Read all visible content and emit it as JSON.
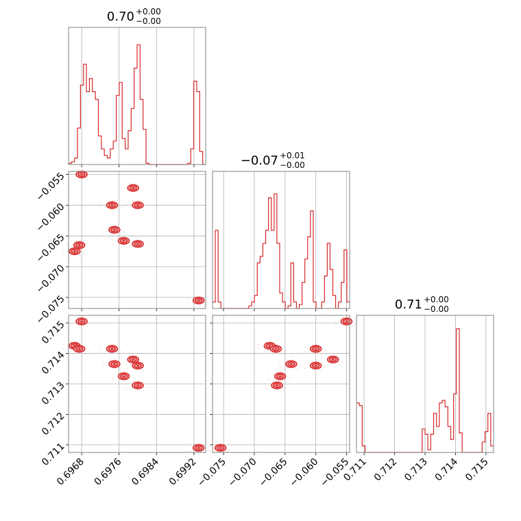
{
  "colors": {
    "series": "#d62728",
    "frame": "#808080",
    "grid": "#b0b0b0"
  },
  "chart_data": {
    "type": "corner",
    "params": [
      {
        "title": {
          "value": "0.70",
          "plus": "+0.00",
          "minus": "−0.00"
        },
        "range": [
          0.69652,
          0.69945
        ],
        "ticks": [
          {
            "value": 0.6968,
            "label": "0.6968"
          },
          {
            "value": 0.6976,
            "label": "0.6976"
          },
          {
            "value": 0.6984,
            "label": "0.6984"
          },
          {
            "value": 0.6992,
            "label": "0.6992"
          }
        ],
        "hist": [
          0.01,
          0.02,
          0.05,
          0.28,
          0.61,
          0.77,
          0.56,
          0.66,
          0.56,
          0.5,
          0.22,
          0.12,
          0.07,
          0.05,
          0.12,
          0.18,
          0.53,
          0.63,
          0.2,
          0.12,
          0.26,
          0.43,
          0.74,
          0.92,
          0.5,
          0.27,
          0.01,
          0.0,
          0.0,
          0.0,
          0.0,
          0.0,
          0.0,
          0.0,
          0.0,
          0.0,
          0.0,
          0.0,
          0.0,
          0.0,
          0.01,
          0.12,
          0.64,
          0.56,
          0.1,
          0.0
        ]
      },
      {
        "title": {
          "value": "−0.07",
          "plus": "+0.01",
          "minus": "−0.00"
        },
        "range": [
          -0.0768,
          -0.0545
        ],
        "ticks": [
          {
            "value": -0.075,
            "label": "−0.075"
          },
          {
            "value": -0.07,
            "label": "−0.070"
          },
          {
            "value": -0.065,
            "label": "−0.065"
          },
          {
            "value": -0.06,
            "label": "−0.060"
          },
          {
            "value": -0.055,
            "label": "−0.055"
          }
        ],
        "hist": [
          0.05,
          0.6,
          0.05,
          0.0,
          0.0,
          0.0,
          0.0,
          0.0,
          0.0,
          0.0,
          0.0,
          0.0,
          0.0,
          0.02,
          0.05,
          0.1,
          0.35,
          0.4,
          0.5,
          0.6,
          0.85,
          0.6,
          0.88,
          0.5,
          0.12,
          0.05,
          0.0,
          0.02,
          0.35,
          0.05,
          0.0,
          0.03,
          0.2,
          0.38,
          0.55,
          0.75,
          0.05,
          0.0,
          0.0,
          0.05,
          0.25,
          0.5,
          0.3,
          0.1,
          0.0,
          0.05,
          0.2,
          0.45,
          0.05
        ]
      },
      {
        "title": {
          "value": "0.71",
          "plus": "+0.00",
          "minus": "−0.00"
        },
        "range": [
          0.71075,
          0.71525
        ],
        "ticks": [
          {
            "value": 0.711,
            "label": "0.711"
          },
          {
            "value": 0.712,
            "label": "0.712"
          },
          {
            "value": 0.713,
            "label": "0.713"
          },
          {
            "value": 0.714,
            "label": "0.714"
          },
          {
            "value": 0.715,
            "label": "0.715"
          }
        ],
        "hist": [
          0.38,
          0.36,
          0.05,
          0.0,
          0.0,
          0.0,
          0.0,
          0.0,
          0.0,
          0.0,
          0.0,
          0.0,
          0.0,
          0.0,
          0.0,
          0.0,
          0.0,
          0.0,
          0.0,
          0.0,
          0.0,
          0.0,
          0.0,
          0.18,
          0.14,
          0.02,
          0.14,
          0.3,
          0.2,
          0.38,
          0.4,
          0.35,
          0.2,
          0.1,
          0.45,
          0.95,
          0.15,
          0.0,
          0.0,
          0.0,
          0.0,
          0.0,
          0.0,
          0.0,
          0.08,
          0.16,
          0.3,
          0.05
        ]
      }
    ],
    "clusters": [
      {
        "p": [
          0.6968,
          -0.055,
          0.71505
        ]
      },
      {
        "p": [
          0.69665,
          -0.0675,
          0.71425
        ]
      },
      {
        "p": [
          0.69675,
          -0.0665,
          0.71415
        ]
      },
      {
        "p": [
          0.69745,
          -0.06,
          0.71415
        ]
      },
      {
        "p": [
          0.6975,
          -0.064,
          0.71365
        ]
      },
      {
        "p": [
          0.6977,
          -0.0658,
          0.71325
        ]
      },
      {
        "p": [
          0.6979,
          -0.0572,
          0.7138
        ]
      },
      {
        "p": [
          0.698,
          -0.06,
          0.7136
        ]
      },
      {
        "p": [
          0.698,
          -0.0663,
          0.71295
        ]
      },
      {
        "p": [
          0.6993,
          -0.0755,
          0.7109
        ]
      }
    ]
  }
}
